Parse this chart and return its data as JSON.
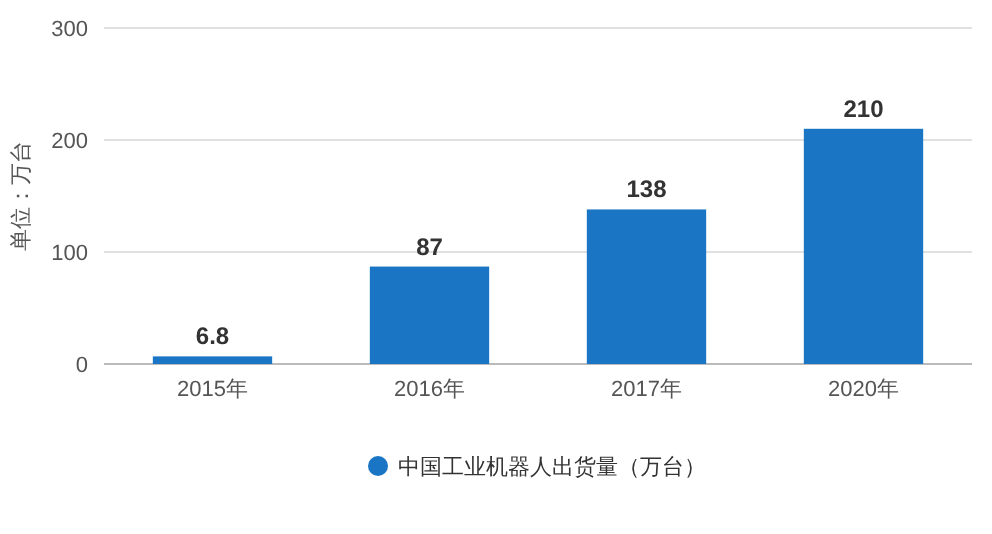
{
  "chart_data": {
    "type": "bar",
    "ylabel": "单位：万台",
    "categories": [
      "2015年",
      "2016年",
      "2017年",
      "2020年"
    ],
    "series": [
      {
        "name": "中国工业机器人出货量（万台）",
        "color": "#1a75c4",
        "values": [
          6.8,
          87,
          138,
          210
        ]
      }
    ],
    "ylim": [
      0,
      300
    ],
    "yticks": [
      0,
      100,
      200,
      300
    ],
    "grid": "y",
    "data_labels": true,
    "legend": "bottom"
  }
}
